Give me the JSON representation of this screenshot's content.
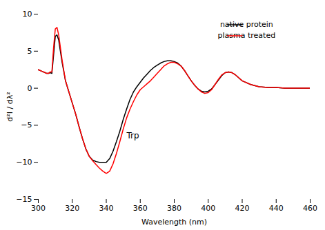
{
  "chart_data": {
    "type": "line",
    "xlabel": "Wavelength (nm)",
    "ylabel": "d²I / dλ²",
    "xlim": [
      300,
      460
    ],
    "ylim": [
      -15,
      10
    ],
    "xticks": [
      300,
      320,
      340,
      360,
      380,
      400,
      420,
      440,
      460
    ],
    "yticks": [
      -15,
      -10,
      -5,
      0,
      5,
      10
    ],
    "grid": false,
    "legend": "upper right",
    "annotations": [
      {
        "text": "Trp",
        "x": 352,
        "y": -6.8
      }
    ],
    "x": [
      300,
      302,
      304,
      305,
      306,
      307,
      308,
      309,
      310,
      311,
      312,
      313,
      314,
      316,
      318,
      320,
      322,
      324,
      326,
      328,
      330,
      332,
      334,
      336,
      338,
      340,
      342,
      344,
      346,
      348,
      350,
      352,
      354,
      356,
      358,
      360,
      362,
      364,
      366,
      368,
      370,
      372,
      374,
      376,
      378,
      380,
      382,
      384,
      386,
      388,
      390,
      392,
      394,
      396,
      398,
      400,
      402,
      404,
      406,
      408,
      410,
      412,
      414,
      416,
      418,
      420,
      425,
      430,
      435,
      440,
      445,
      450,
      455,
      460
    ],
    "series": [
      {
        "name": "native protein",
        "color": "black",
        "values": [
          2.5,
          2.3,
          2.1,
          2.0,
          2.0,
          2.1,
          2.0,
          4.5,
          7.0,
          7.2,
          6.5,
          5.0,
          3.5,
          1.0,
          -0.5,
          -2.0,
          -3.5,
          -5.2,
          -6.8,
          -8.2,
          -9.2,
          -9.7,
          -9.9,
          -10.0,
          -10.0,
          -10.0,
          -9.5,
          -8.5,
          -7.2,
          -5.8,
          -4.2,
          -2.8,
          -1.5,
          -0.5,
          0.2,
          0.8,
          1.4,
          1.9,
          2.4,
          2.8,
          3.1,
          3.4,
          3.6,
          3.7,
          3.7,
          3.6,
          3.4,
          3.0,
          2.4,
          1.7,
          1.0,
          0.4,
          -0.1,
          -0.4,
          -0.5,
          -0.4,
          -0.1,
          0.5,
          1.1,
          1.7,
          2.1,
          2.2,
          2.1,
          1.8,
          1.4,
          1.0,
          0.5,
          0.2,
          0.1,
          0.1,
          0.0,
          0.0,
          0.0,
          0.0
        ]
      },
      {
        "name": "plasma treated",
        "color": "red",
        "values": [
          2.5,
          2.3,
          2.1,
          2.0,
          2.0,
          2.2,
          2.2,
          5.5,
          8.0,
          8.2,
          7.2,
          5.5,
          3.8,
          1.0,
          -0.5,
          -2.0,
          -3.5,
          -5.2,
          -6.8,
          -8.2,
          -9.2,
          -9.8,
          -10.3,
          -10.8,
          -11.2,
          -11.5,
          -11.2,
          -10.2,
          -8.8,
          -7.2,
          -5.5,
          -4.0,
          -2.8,
          -1.8,
          -0.9,
          -0.2,
          0.2,
          0.6,
          1.0,
          1.5,
          2.0,
          2.5,
          3.0,
          3.3,
          3.5,
          3.5,
          3.3,
          3.0,
          2.4,
          1.7,
          1.0,
          0.4,
          -0.1,
          -0.5,
          -0.7,
          -0.6,
          -0.2,
          0.5,
          1.2,
          1.8,
          2.1,
          2.2,
          2.1,
          1.8,
          1.4,
          1.0,
          0.5,
          0.2,
          0.1,
          0.1,
          0.0,
          0.0,
          0.0,
          0.0
        ]
      }
    ]
  }
}
